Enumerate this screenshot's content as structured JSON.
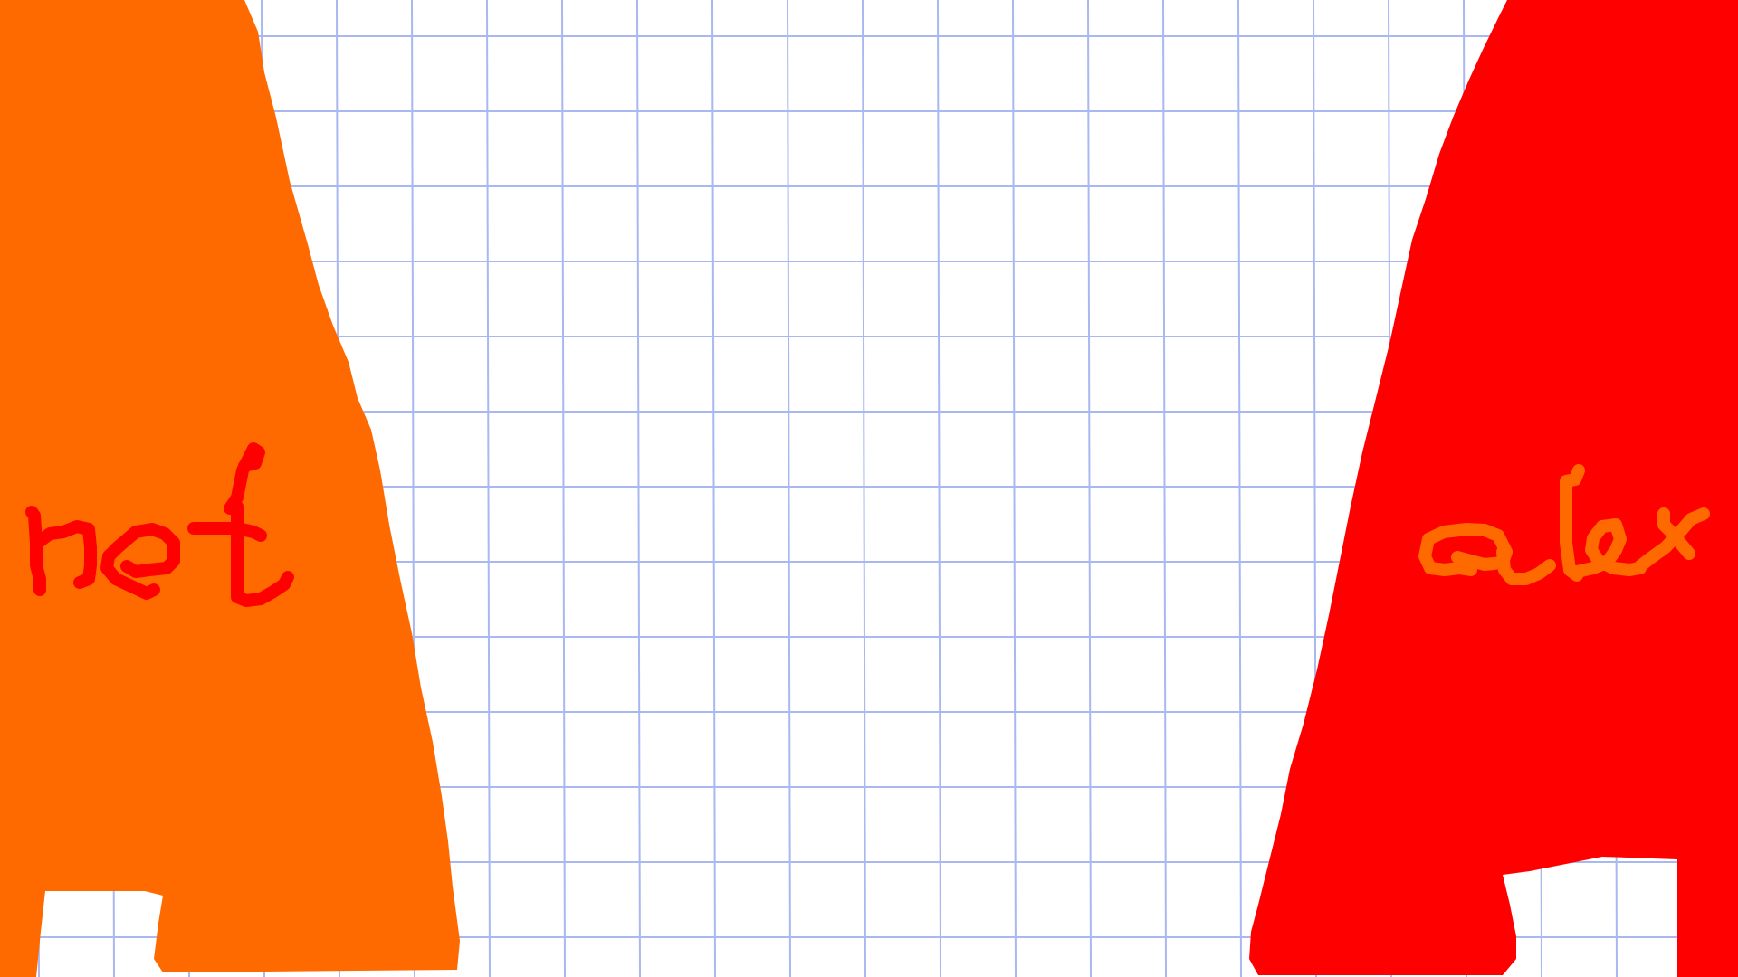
{
  "canvas": {
    "background_color": "#ffffff",
    "grid_color": "#a9b8f0",
    "grid": true
  },
  "left_shape": {
    "fill_color": "#ff6a00",
    "handwritten_label": "heft",
    "label_color": "#ff0000"
  },
  "right_shape": {
    "fill_color": "#ff0000",
    "handwritten_label": "alex",
    "label_color": "#ff6a00"
  }
}
